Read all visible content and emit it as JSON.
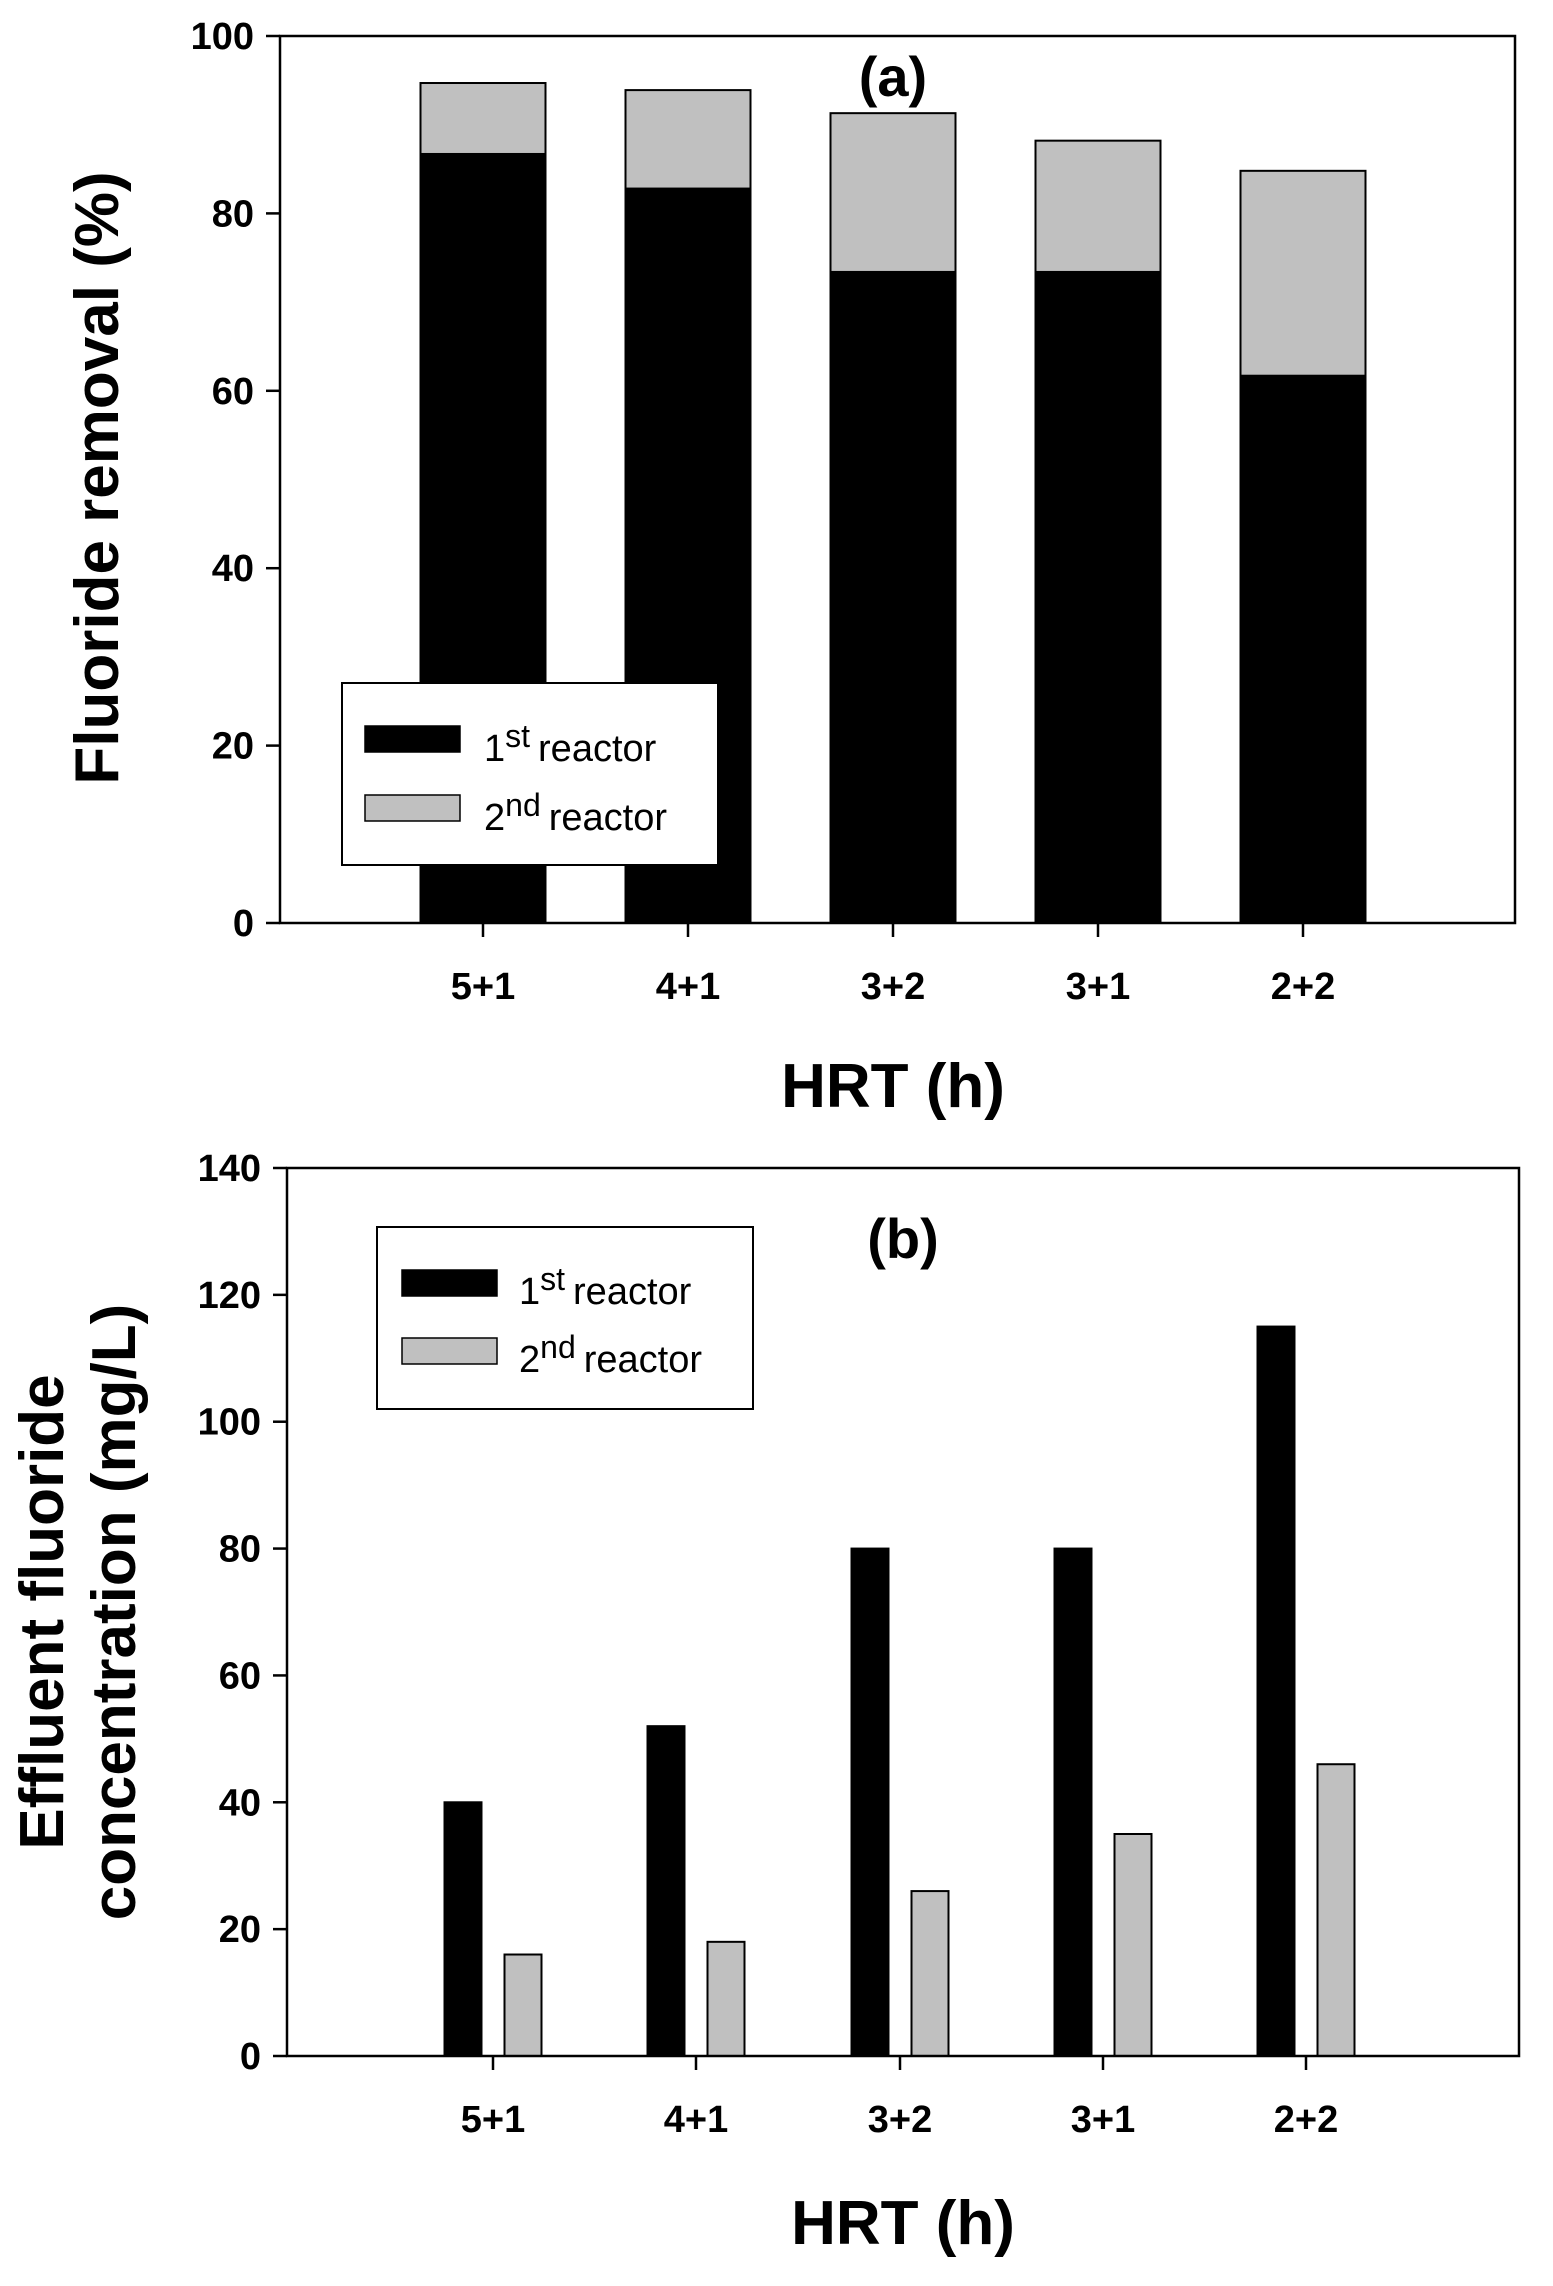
{
  "chart_data": [
    {
      "type": "bar",
      "stacked": true,
      "title": "(a)",
      "xlabel": "HRT (h)",
      "ylabel": "Fluoride removal (%)",
      "ylim": [
        0,
        100
      ],
      "yticks": [
        "0",
        "20",
        "40",
        "60",
        "80",
        "100"
      ],
      "categories": [
        "5+1",
        "4+1",
        "3+2",
        "3+1",
        "2+2"
      ],
      "series": [
        {
          "name": "1st reactor",
          "values": [
            86.7,
            82.8,
            73.4,
            73.4,
            61.7
          ],
          "color": "#000000"
        },
        {
          "name": "2nd reactor",
          "values": [
            8.0,
            11.1,
            17.9,
            14.8,
            23.1
          ],
          "color": "#c0c0c0"
        }
      ],
      "legend": [
        {
          "num": "1",
          "sup": "st",
          "text": "reactor",
          "color": "#000000"
        },
        {
          "num": "2",
          "sup": "nd",
          "text": "reactor",
          "color": "#c0c0c0"
        }
      ],
      "legend_position": "lower-left"
    },
    {
      "type": "bar",
      "stacked": false,
      "title": "(b)",
      "xlabel": "HRT (h)",
      "ylabel_lines": [
        "Effluent fluoride",
        "concentration (mg/L)"
      ],
      "ylim": [
        0,
        140
      ],
      "yticks": [
        "0",
        "20",
        "40",
        "60",
        "80",
        "100",
        "120",
        "140"
      ],
      "categories": [
        "5+1",
        "4+1",
        "3+2",
        "3+1",
        "2+2"
      ],
      "series": [
        {
          "name": "1st reactor",
          "values": [
            40,
            52,
            80,
            80,
            115
          ],
          "color": "#000000"
        },
        {
          "name": "2nd reactor",
          "values": [
            16,
            18,
            26,
            35,
            46
          ],
          "color": "#c0c0c0"
        }
      ],
      "legend": [
        {
          "num": "1",
          "sup": "st",
          "text": "reactor",
          "color": "#000000"
        },
        {
          "num": "2",
          "sup": "nd",
          "text": "reactor",
          "color": "#c0c0c0"
        }
      ],
      "legend_position": "top-left"
    }
  ]
}
